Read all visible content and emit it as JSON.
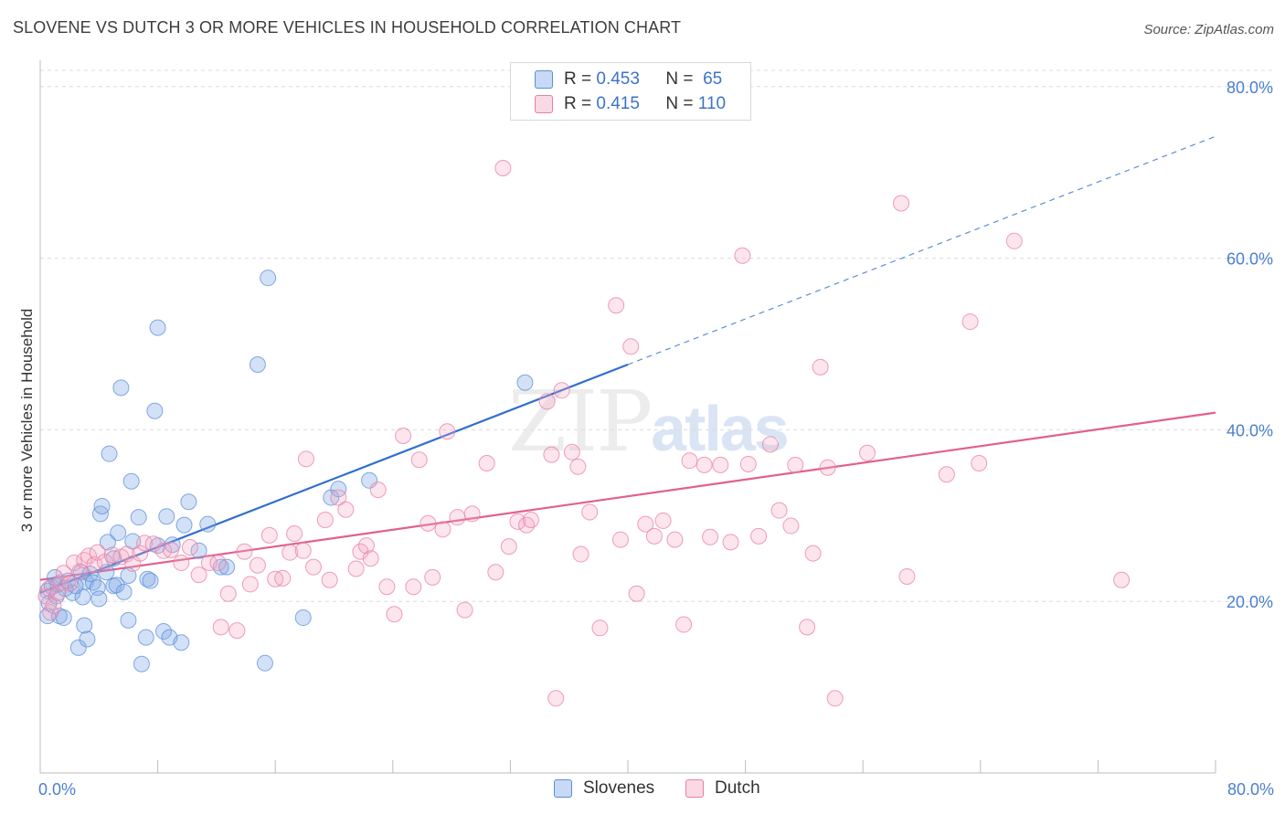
{
  "title": "SLOVENE VS DUTCH 3 OR MORE VEHICLES IN HOUSEHOLD CORRELATION CHART",
  "source": "Source: ZipAtlas.com",
  "watermark": {
    "zip": "ZIP",
    "atlas": "atlas"
  },
  "legend": {
    "r_label": "R =",
    "n_label": "N =",
    "rows": [
      {
        "r": "0.453",
        "n": "65",
        "color": "#5b8fd8"
      },
      {
        "r": "0.415",
        "n": "110",
        "color": "#e87ea5"
      }
    ]
  },
  "bottom_legend": [
    {
      "label": "Slovenes"
    },
    {
      "label": "Dutch"
    }
  ],
  "chart_data": {
    "type": "scatter",
    "title": "SLOVENE VS DUTCH 3 OR MORE VEHICLES IN HOUSEHOLD CORRELATION CHART",
    "xlabel": "",
    "ylabel": "3 or more Vehicles in Household",
    "xlim": [
      0,
      80
    ],
    "ylim": [
      0,
      82
    ],
    "x_tick_labels": [
      "0.0%",
      "80.0%"
    ],
    "y_ticks": [
      20,
      40,
      60,
      80
    ],
    "y_tick_labels": [
      "20.0%",
      "40.0%",
      "60.0%",
      "80.0%"
    ],
    "series": [
      {
        "name": "Slovenes",
        "color": "#5b8fd8",
        "fill": "rgba(130,170,230,0.35)",
        "trend": {
          "x0": 0,
          "y0": 21.0,
          "x1": 40,
          "y1": 47.6,
          "dash_to_x": 80,
          "dash_to_y": 74.2
        },
        "points": [
          [
            0.5,
            21.2
          ],
          [
            0.5,
            18.3
          ],
          [
            0.6,
            19.8
          ],
          [
            0.8,
            21.7
          ],
          [
            1.0,
            22.8
          ],
          [
            1.1,
            20.6
          ],
          [
            1.2,
            22.0
          ],
          [
            1.3,
            18.3
          ],
          [
            1.6,
            18.1
          ],
          [
            1.7,
            21.5
          ],
          [
            1.9,
            22.4
          ],
          [
            2.2,
            21.0
          ],
          [
            2.6,
            14.6
          ],
          [
            2.8,
            23.4
          ],
          [
            2.9,
            20.5
          ],
          [
            3.0,
            17.2
          ],
          [
            3.1,
            22.3
          ],
          [
            3.2,
            15.6
          ],
          [
            3.4,
            23.2
          ],
          [
            3.6,
            22.2
          ],
          [
            3.9,
            21.6
          ],
          [
            4.0,
            20.3
          ],
          [
            4.1,
            30.2
          ],
          [
            4.2,
            31.1
          ],
          [
            4.5,
            23.4
          ],
          [
            4.6,
            26.9
          ],
          [
            4.7,
            37.2
          ],
          [
            5.0,
            21.8
          ],
          [
            5.0,
            25.0
          ],
          [
            5.2,
            21.9
          ],
          [
            5.3,
            28.0
          ],
          [
            5.5,
            44.9
          ],
          [
            5.7,
            21.1
          ],
          [
            6.0,
            23.0
          ],
          [
            6.0,
            17.8
          ],
          [
            6.2,
            34.0
          ],
          [
            6.3,
            27.0
          ],
          [
            6.7,
            29.8
          ],
          [
            6.9,
            12.7
          ],
          [
            7.2,
            15.8
          ],
          [
            7.3,
            22.6
          ],
          [
            7.5,
            22.4
          ],
          [
            7.8,
            42.2
          ],
          [
            8.0,
            51.9
          ],
          [
            8.0,
            26.5
          ],
          [
            8.4,
            16.5
          ],
          [
            8.6,
            29.9
          ],
          [
            8.8,
            15.8
          ],
          [
            9.0,
            26.6
          ],
          [
            9.6,
            15.2
          ],
          [
            9.8,
            28.9
          ],
          [
            10.1,
            31.6
          ],
          [
            10.8,
            25.9
          ],
          [
            11.4,
            29.0
          ],
          [
            12.3,
            24.0
          ],
          [
            12.7,
            24.0
          ],
          [
            14.8,
            47.6
          ],
          [
            15.3,
            12.8
          ],
          [
            15.5,
            57.7
          ],
          [
            17.9,
            18.1
          ],
          [
            19.8,
            32.1
          ],
          [
            20.3,
            33.1
          ],
          [
            22.4,
            34.1
          ],
          [
            33.0,
            45.5
          ],
          [
            2.4,
            21.8
          ]
        ]
      },
      {
        "name": "Dutch",
        "color": "#e87ea5",
        "fill": "rgba(245,170,195,0.30)",
        "trend": {
          "x0": 0,
          "y0": 22.5,
          "x1": 80,
          "y1": 42.0
        },
        "points": [
          [
            0.4,
            20.6
          ],
          [
            0.6,
            21.5
          ],
          [
            0.7,
            18.7
          ],
          [
            0.9,
            19.5
          ],
          [
            1.2,
            21.0
          ],
          [
            1.4,
            22.2
          ],
          [
            1.6,
            23.3
          ],
          [
            2.0,
            22.1
          ],
          [
            2.3,
            24.5
          ],
          [
            2.7,
            23.5
          ],
          [
            3.0,
            24.8
          ],
          [
            3.3,
            25.3
          ],
          [
            3.7,
            24.3
          ],
          [
            3.9,
            25.7
          ],
          [
            4.4,
            24.6
          ],
          [
            4.9,
            25.4
          ],
          [
            5.5,
            25.2
          ],
          [
            5.9,
            25.5
          ],
          [
            6.3,
            24.4
          ],
          [
            6.8,
            25.6
          ],
          [
            7.1,
            26.8
          ],
          [
            7.7,
            26.7
          ],
          [
            8.4,
            25.9
          ],
          [
            8.9,
            26.0
          ],
          [
            9.6,
            24.5
          ],
          [
            10.2,
            26.3
          ],
          [
            10.8,
            23.1
          ],
          [
            11.5,
            24.5
          ],
          [
            12.1,
            24.5
          ],
          [
            12.3,
            17.0
          ],
          [
            12.8,
            20.9
          ],
          [
            13.4,
            16.6
          ],
          [
            13.9,
            25.8
          ],
          [
            14.3,
            22.0
          ],
          [
            14.8,
            24.2
          ],
          [
            15.6,
            27.7
          ],
          [
            16.0,
            22.6
          ],
          [
            16.5,
            22.7
          ],
          [
            17.0,
            25.7
          ],
          [
            17.3,
            27.9
          ],
          [
            17.9,
            25.9
          ],
          [
            18.1,
            36.6
          ],
          [
            18.6,
            24.0
          ],
          [
            19.4,
            29.5
          ],
          [
            19.7,
            22.5
          ],
          [
            20.3,
            32.1
          ],
          [
            20.8,
            30.7
          ],
          [
            21.5,
            23.8
          ],
          [
            21.8,
            25.8
          ],
          [
            22.2,
            26.5
          ],
          [
            22.5,
            25.0
          ],
          [
            23.0,
            33.0
          ],
          [
            23.6,
            21.7
          ],
          [
            24.1,
            18.5
          ],
          [
            24.7,
            39.3
          ],
          [
            25.4,
            21.7
          ],
          [
            25.8,
            36.5
          ],
          [
            26.4,
            29.1
          ],
          [
            26.7,
            22.8
          ],
          [
            27.4,
            28.4
          ],
          [
            27.7,
            39.8
          ],
          [
            28.4,
            29.8
          ],
          [
            28.9,
            19.0
          ],
          [
            29.4,
            30.2
          ],
          [
            30.4,
            36.1
          ],
          [
            31.0,
            23.4
          ],
          [
            31.5,
            70.5
          ],
          [
            31.9,
            26.4
          ],
          [
            32.5,
            29.3
          ],
          [
            33.1,
            28.9
          ],
          [
            33.4,
            29.5
          ],
          [
            34.5,
            43.3
          ],
          [
            34.8,
            37.1
          ],
          [
            35.1,
            8.7
          ],
          [
            35.5,
            44.6
          ],
          [
            36.2,
            37.4
          ],
          [
            36.6,
            35.7
          ],
          [
            36.8,
            25.5
          ],
          [
            37.4,
            30.4
          ],
          [
            38.1,
            16.9
          ],
          [
            39.2,
            54.5
          ],
          [
            39.5,
            27.2
          ],
          [
            40.2,
            49.7
          ],
          [
            40.6,
            20.9
          ],
          [
            41.2,
            29.0
          ],
          [
            41.8,
            27.6
          ],
          [
            42.4,
            29.4
          ],
          [
            43.2,
            27.2
          ],
          [
            43.8,
            17.3
          ],
          [
            44.2,
            36.4
          ],
          [
            45.2,
            35.9
          ],
          [
            45.6,
            27.5
          ],
          [
            46.3,
            35.9
          ],
          [
            47.0,
            26.9
          ],
          [
            47.8,
            60.3
          ],
          [
            48.2,
            36.0
          ],
          [
            48.9,
            27.6
          ],
          [
            49.7,
            38.3
          ],
          [
            50.3,
            30.6
          ],
          [
            51.1,
            28.8
          ],
          [
            51.4,
            35.9
          ],
          [
            52.2,
            17.0
          ],
          [
            52.6,
            25.6
          ],
          [
            53.1,
            47.3
          ],
          [
            53.6,
            35.6
          ],
          [
            54.1,
            8.7
          ],
          [
            56.3,
            37.3
          ],
          [
            58.6,
            66.4
          ],
          [
            59.0,
            22.9
          ],
          [
            61.7,
            34.8
          ],
          [
            63.3,
            52.6
          ],
          [
            63.9,
            36.1
          ],
          [
            66.3,
            62.0
          ],
          [
            73.6,
            22.5
          ]
        ]
      }
    ]
  }
}
